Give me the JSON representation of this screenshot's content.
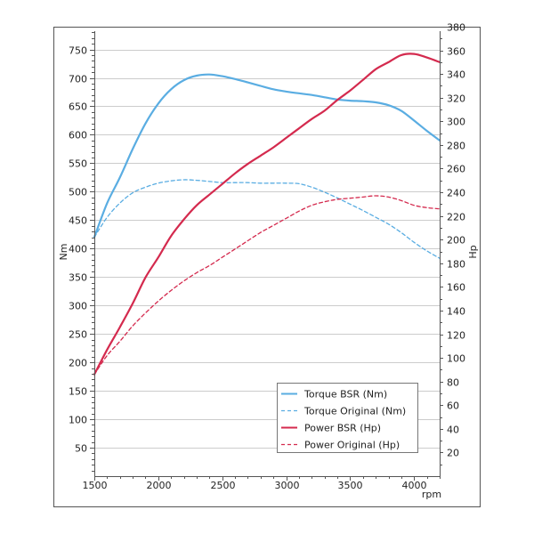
{
  "chart_data": {
    "type": "line",
    "xlabel": "rpm",
    "ylabel": "Nm",
    "y2label": "Hp",
    "xlim": [
      1500,
      4200
    ],
    "ylim": [
      0,
      790
    ],
    "y2lim": [
      0,
      380
    ],
    "x_ticks": [
      1500,
      2000,
      2500,
      3000,
      3500,
      4000
    ],
    "y_ticks": [
      50,
      100,
      150,
      200,
      250,
      300,
      350,
      400,
      450,
      500,
      550,
      600,
      650,
      700,
      750
    ],
    "y2_ticks": [
      20,
      40,
      60,
      80,
      100,
      120,
      140,
      160,
      180,
      200,
      220,
      240,
      260,
      280,
      300,
      320,
      340,
      360,
      380
    ],
    "grid": "horizontal",
    "legend_position": "bottom-right",
    "colors": {
      "torque": "#5aade2",
      "power": "#d42a4e",
      "grid": "#cccccc",
      "frame": "#555555"
    },
    "series": [
      {
        "name": "Torque BSR (Nm)",
        "axis": "left",
        "style": "solid",
        "color": "#5aade2",
        "points": [
          [
            1500,
            420
          ],
          [
            1600,
            480
          ],
          [
            1700,
            525
          ],
          [
            1800,
            575
          ],
          [
            1900,
            620
          ],
          [
            2000,
            655
          ],
          [
            2100,
            680
          ],
          [
            2200,
            696
          ],
          [
            2300,
            704
          ],
          [
            2400,
            706
          ],
          [
            2500,
            703
          ],
          [
            2600,
            698
          ],
          [
            2700,
            692
          ],
          [
            2800,
            686
          ],
          [
            2900,
            680
          ],
          [
            3000,
            676
          ],
          [
            3100,
            673
          ],
          [
            3200,
            670
          ],
          [
            3300,
            666
          ],
          [
            3400,
            662
          ],
          [
            3500,
            660
          ],
          [
            3600,
            659
          ],
          [
            3700,
            657
          ],
          [
            3800,
            652
          ],
          [
            3900,
            642
          ],
          [
            4000,
            625
          ],
          [
            4100,
            607
          ],
          [
            4200,
            590
          ]
        ]
      },
      {
        "name": "Torque Original (Nm)",
        "axis": "left",
        "style": "dashed",
        "color": "#5aade2",
        "points": [
          [
            1500,
            420
          ],
          [
            1600,
            455
          ],
          [
            1700,
            480
          ],
          [
            1800,
            498
          ],
          [
            1900,
            508
          ],
          [
            2000,
            515
          ],
          [
            2100,
            519
          ],
          [
            2200,
            521
          ],
          [
            2300,
            520
          ],
          [
            2400,
            518
          ],
          [
            2500,
            516
          ],
          [
            2600,
            516
          ],
          [
            2700,
            516
          ],
          [
            2800,
            515
          ],
          [
            2900,
            515
          ],
          [
            3000,
            515
          ],
          [
            3100,
            514
          ],
          [
            3200,
            508
          ],
          [
            3300,
            499
          ],
          [
            3400,
            489
          ],
          [
            3500,
            478
          ],
          [
            3600,
            467
          ],
          [
            3700,
            455
          ],
          [
            3800,
            443
          ],
          [
            3900,
            428
          ],
          [
            4000,
            411
          ],
          [
            4100,
            396
          ],
          [
            4200,
            383
          ]
        ]
      },
      {
        "name": "Power BSR (Hp)",
        "axis": "right",
        "style": "solid",
        "color": "#d42a4e",
        "points": [
          [
            1500,
            86
          ],
          [
            1600,
            107
          ],
          [
            1700,
            126
          ],
          [
            1800,
            146
          ],
          [
            1900,
            168
          ],
          [
            2000,
            185
          ],
          [
            2100,
            203
          ],
          [
            2200,
            217
          ],
          [
            2300,
            229
          ],
          [
            2400,
            238
          ],
          [
            2500,
            247
          ],
          [
            2600,
            256
          ],
          [
            2700,
            264
          ],
          [
            2800,
            271
          ],
          [
            2900,
            278
          ],
          [
            3000,
            286
          ],
          [
            3100,
            294
          ],
          [
            3200,
            302
          ],
          [
            3300,
            309
          ],
          [
            3400,
            318
          ],
          [
            3500,
            326
          ],
          [
            3600,
            335
          ],
          [
            3700,
            344
          ],
          [
            3800,
            350
          ],
          [
            3900,
            356
          ],
          [
            4000,
            357
          ],
          [
            4100,
            354
          ],
          [
            4200,
            350
          ]
        ]
      },
      {
        "name": "Power Original (Hp)",
        "axis": "right",
        "style": "dashed",
        "color": "#d42a4e",
        "points": [
          [
            1500,
            86
          ],
          [
            1600,
            102
          ],
          [
            1700,
            114
          ],
          [
            1800,
            127
          ],
          [
            1900,
            138
          ],
          [
            2000,
            148
          ],
          [
            2100,
            157
          ],
          [
            2200,
            165
          ],
          [
            2300,
            172
          ],
          [
            2400,
            178
          ],
          [
            2500,
            185
          ],
          [
            2600,
            192
          ],
          [
            2700,
            199
          ],
          [
            2800,
            206
          ],
          [
            2900,
            212
          ],
          [
            3000,
            218
          ],
          [
            3100,
            224
          ],
          [
            3200,
            229
          ],
          [
            3300,
            232
          ],
          [
            3400,
            234
          ],
          [
            3500,
            235
          ],
          [
            3600,
            236
          ],
          [
            3700,
            237
          ],
          [
            3800,
            236
          ],
          [
            3900,
            233
          ],
          [
            4000,
            229
          ],
          [
            4100,
            227
          ],
          [
            4200,
            226
          ]
        ]
      }
    ]
  }
}
